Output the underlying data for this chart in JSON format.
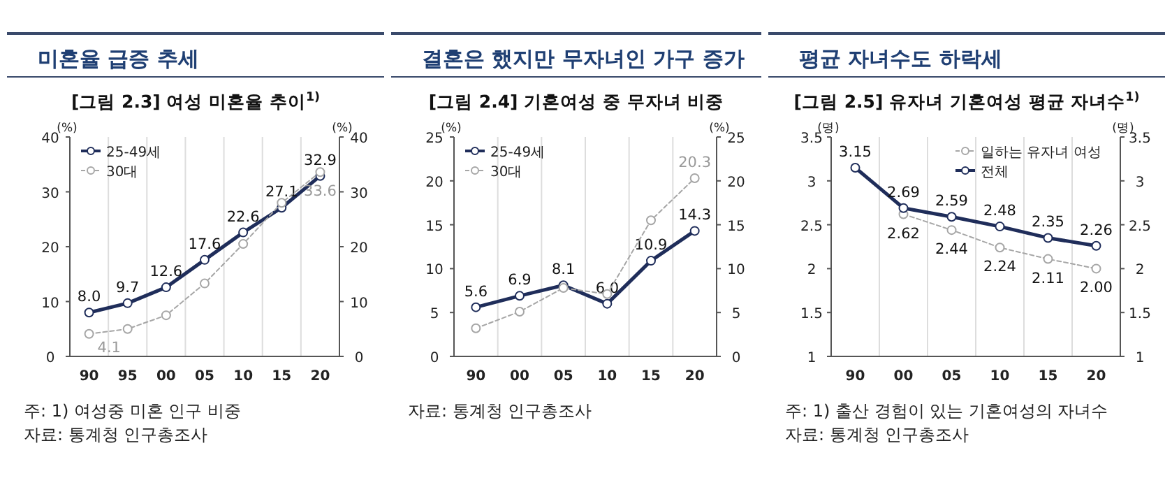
{
  "chart_data": [
    {
      "type": "line",
      "title": "미혼율 급증 추세",
      "subtitle": "[그림 2.3] 여성 미혼율 추이$^{1)}$",
      "ylabel": "(%)",
      "y2label": "(%)",
      "categories": [
        "90",
        "95",
        "00",
        "05",
        "10",
        "15",
        "20"
      ],
      "series": [
        {
          "name": "25-49세",
          "color": "#1f2d5a",
          "line_style": "solid",
          "values": [
            8.0,
            9.7,
            12.6,
            17.6,
            22.6,
            27.1,
            32.9
          ],
          "value_labels": [
            "8.0",
            "9.7",
            "12.6",
            "17.6",
            "22.6",
            "27.1",
            "32.9"
          ]
        },
        {
          "name": "30대",
          "color": "#a6a6a6",
          "line_style": "dashed",
          "values": [
            4.1,
            5.0,
            7.5,
            13.3,
            20.5,
            28.0,
            33.6
          ],
          "value_labels": [
            "4.1",
            null,
            null,
            null,
            null,
            null,
            "33.6"
          ]
        }
      ],
      "ylim": [
        0,
        40
      ],
      "yticks": [
        0,
        10,
        20,
        30,
        40
      ],
      "y2lim": [
        0,
        40
      ],
      "y2ticks": [
        0,
        10,
        20,
        30,
        40
      ],
      "grid": "x",
      "legend": "top left",
      "marker": "circle",
      "annotations": [
        "주: 1) 여성중 미혼 인구 비중",
        "자료: 통계청 인구총조사"
      ]
    },
    {
      "type": "line",
      "title": "결혼은 했지만 무자녀인 가구 증가",
      "subtitle": "[그림 2.4] 기혼여성 중 무자녀 비중",
      "ylabel": "(%)",
      "y2label": "(%)",
      "categories": [
        "90",
        "00",
        "05",
        "10",
        "15",
        "20"
      ],
      "series": [
        {
          "name": "25-49세",
          "color": "#1f2d5a",
          "line_style": "solid",
          "values": [
            5.6,
            6.9,
            8.1,
            6.0,
            10.9,
            14.3
          ],
          "value_labels": [
            "5.6",
            "6.9",
            "8.1",
            "6.0",
            "10.9",
            "14.3"
          ]
        },
        {
          "name": "30대",
          "color": "#a6a6a6",
          "line_style": "dashed",
          "values": [
            3.2,
            5.1,
            7.8,
            7.1,
            15.5,
            20.3
          ],
          "value_labels": [
            null,
            null,
            null,
            null,
            null,
            "20.3"
          ]
        }
      ],
      "ylim": [
        0,
        25
      ],
      "yticks": [
        0,
        5,
        10,
        15,
        20,
        25
      ],
      "y2lim": [
        0,
        25
      ],
      "y2ticks": [
        0,
        5,
        10,
        15,
        20,
        25
      ],
      "grid": "x",
      "legend": "top left",
      "marker": "circle",
      "annotations": [
        "자료: 통계청 인구총조사"
      ]
    },
    {
      "type": "line",
      "title": "평균 자녀수도 하락세",
      "subtitle": "[그림 2.5] 유자녀 기혼여성 평균 자녀수$^{1)}$",
      "ylabel": "(명)",
      "y2label": "(명)",
      "categories": [
        "90",
        "00",
        "05",
        "10",
        "15",
        "20"
      ],
      "series": [
        {
          "name": "일하는 유자녀 여성",
          "color": "#a6a6a6",
          "line_style": "dashed",
          "values": [
            null,
            2.62,
            2.44,
            2.24,
            2.11,
            2.0
          ],
          "value_labels": [
            null,
            "2.62",
            "2.44",
            "2.24",
            "2.11",
            "2.00"
          ]
        },
        {
          "name": "전체",
          "color": "#1f2d5a",
          "line_style": "solid",
          "values": [
            3.15,
            2.69,
            2.59,
            2.48,
            2.35,
            2.26
          ],
          "value_labels": [
            "3.15",
            "2.69",
            "2.59",
            "2.48",
            "2.35",
            "2.26"
          ]
        }
      ],
      "ylim": [
        1,
        3.5
      ],
      "yticks": [
        1,
        1.5,
        2,
        2.5,
        3,
        3.5
      ],
      "y2lim": [
        1,
        3.5
      ],
      "y2ticks": [
        1,
        1.5,
        2,
        2.5,
        3,
        3.5
      ],
      "grid": "x",
      "legend": "top right",
      "marker": "circle",
      "annotations": [
        "주: 1) 출산 경험이 있는 기혼여성의 자녀수",
        "자료: 통계청 인구총조사"
      ]
    }
  ]
}
